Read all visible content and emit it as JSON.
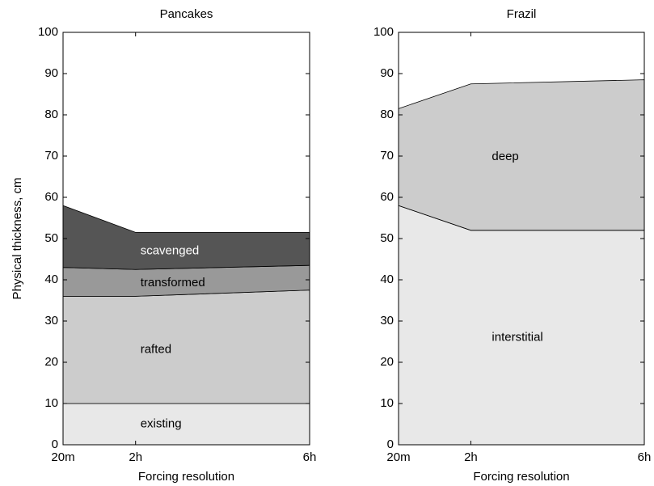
{
  "chart_data": [
    {
      "type": "stacked-area",
      "title": "Pancakes",
      "xlabel": "Forcing resolution",
      "ylabel": "Physical thickness, cm",
      "x": [
        0.3333,
        2,
        6
      ],
      "xlim": [
        0.3333,
        6
      ],
      "xticks": [
        {
          "value": 0.3333,
          "label": "20m"
        },
        {
          "value": 2,
          "label": "2h"
        },
        {
          "value": 6,
          "label": "6h"
        }
      ],
      "ylim": [
        0,
        100
      ],
      "yticks": [
        0,
        10,
        20,
        30,
        40,
        50,
        60,
        70,
        80,
        90,
        100
      ],
      "series": [
        {
          "name": "existing",
          "color": "#e8e8e8",
          "values": [
            10,
            10,
            10
          ]
        },
        {
          "name": "rafted",
          "color": "#cccccc",
          "values": [
            26,
            26,
            27.5
          ]
        },
        {
          "name": "transformed",
          "color": "#999999",
          "values": [
            7,
            6.5,
            6
          ]
        },
        {
          "name": "scavenged",
          "color": "#555555",
          "values": [
            15,
            9,
            8
          ]
        }
      ]
    },
    {
      "type": "stacked-area",
      "title": "Frazil",
      "xlabel": "Forcing resolution",
      "x": [
        0.3333,
        2,
        6
      ],
      "xlim": [
        0.3333,
        6
      ],
      "xticks": [
        {
          "value": 0.3333,
          "label": "20m"
        },
        {
          "value": 2,
          "label": "2h"
        },
        {
          "value": 6,
          "label": "6h"
        }
      ],
      "ylim": [
        0,
        100
      ],
      "yticks": [
        0,
        10,
        20,
        30,
        40,
        50,
        60,
        70,
        80,
        90,
        100
      ],
      "series": [
        {
          "name": "interstitial",
          "color": "#e8e8e8",
          "values": [
            58,
            52,
            52
          ]
        },
        {
          "name": "deep",
          "color": "#cccccc",
          "values": [
            23.5,
            35.5,
            36.5
          ]
        }
      ]
    }
  ]
}
